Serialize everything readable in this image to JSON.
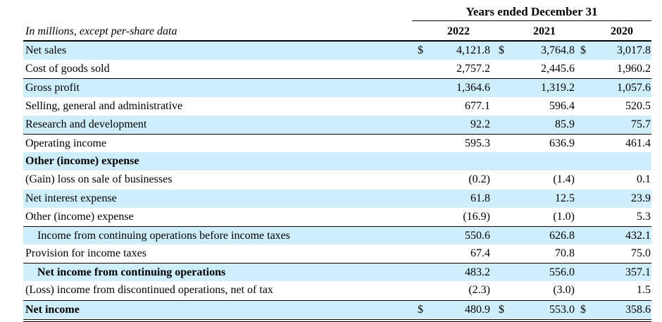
{
  "header": {
    "group_label": "Years ended December 31",
    "units_label": "In millions, except per-share data",
    "years": [
      "2022",
      "2021",
      "2020"
    ]
  },
  "rows": [
    {
      "label": "Net sales",
      "values": [
        "4,121.8",
        "3,764.8",
        "3,017.8"
      ],
      "dollar": true,
      "shade": true
    },
    {
      "label": "Cost of goods sold",
      "values": [
        "2,757.2",
        "2,445.6",
        "1,960.2"
      ]
    },
    {
      "label": "Gross profit",
      "values": [
        "1,364.6",
        "1,319.2",
        "1,057.6"
      ],
      "shade": true,
      "rule_top": true
    },
    {
      "label": "Selling, general and administrative",
      "values": [
        "677.1",
        "596.4",
        "520.5"
      ]
    },
    {
      "label": "Research and development",
      "values": [
        "92.2",
        "85.9",
        "75.7"
      ],
      "shade": true
    },
    {
      "label": "Operating income",
      "values": [
        "595.3",
        "636.9",
        "461.4"
      ],
      "rule_top": true
    },
    {
      "label": "Other (income) expense",
      "values": [
        "",
        "",
        ""
      ],
      "bold": true,
      "shade": true
    },
    {
      "label": "(Gain) loss on sale of businesses",
      "values": [
        "(0.2)",
        "(1.4)",
        "0.1"
      ]
    },
    {
      "label": "Net interest expense",
      "values": [
        "61.8",
        "12.5",
        "23.9"
      ],
      "shade": true
    },
    {
      "label": "Other (income) expense",
      "values": [
        "(16.9)",
        "(1.0)",
        "5.3"
      ]
    },
    {
      "label": "Income from continuing operations before income taxes",
      "values": [
        "550.6",
        "626.8",
        "432.1"
      ],
      "shade": true,
      "indent": true,
      "rule_top": true
    },
    {
      "label": "Provision for income taxes",
      "values": [
        "67.4",
        "70.8",
        "75.0"
      ]
    },
    {
      "label": "Net income from continuing operations",
      "values": [
        "483.2",
        "556.0",
        "357.1"
      ],
      "shade": true,
      "bold": true,
      "indent": true,
      "rule_top": true
    },
    {
      "label": "(Loss) income from discontinued operations, net of tax",
      "values": [
        "(2.3)",
        "(3.0)",
        "1.5"
      ]
    },
    {
      "label": "Net income",
      "values": [
        "480.9",
        "553.0",
        "358.6"
      ],
      "shade": true,
      "bold_label_only": true,
      "dollar": true,
      "rule_top": true
    }
  ],
  "currency_symbol": "$"
}
